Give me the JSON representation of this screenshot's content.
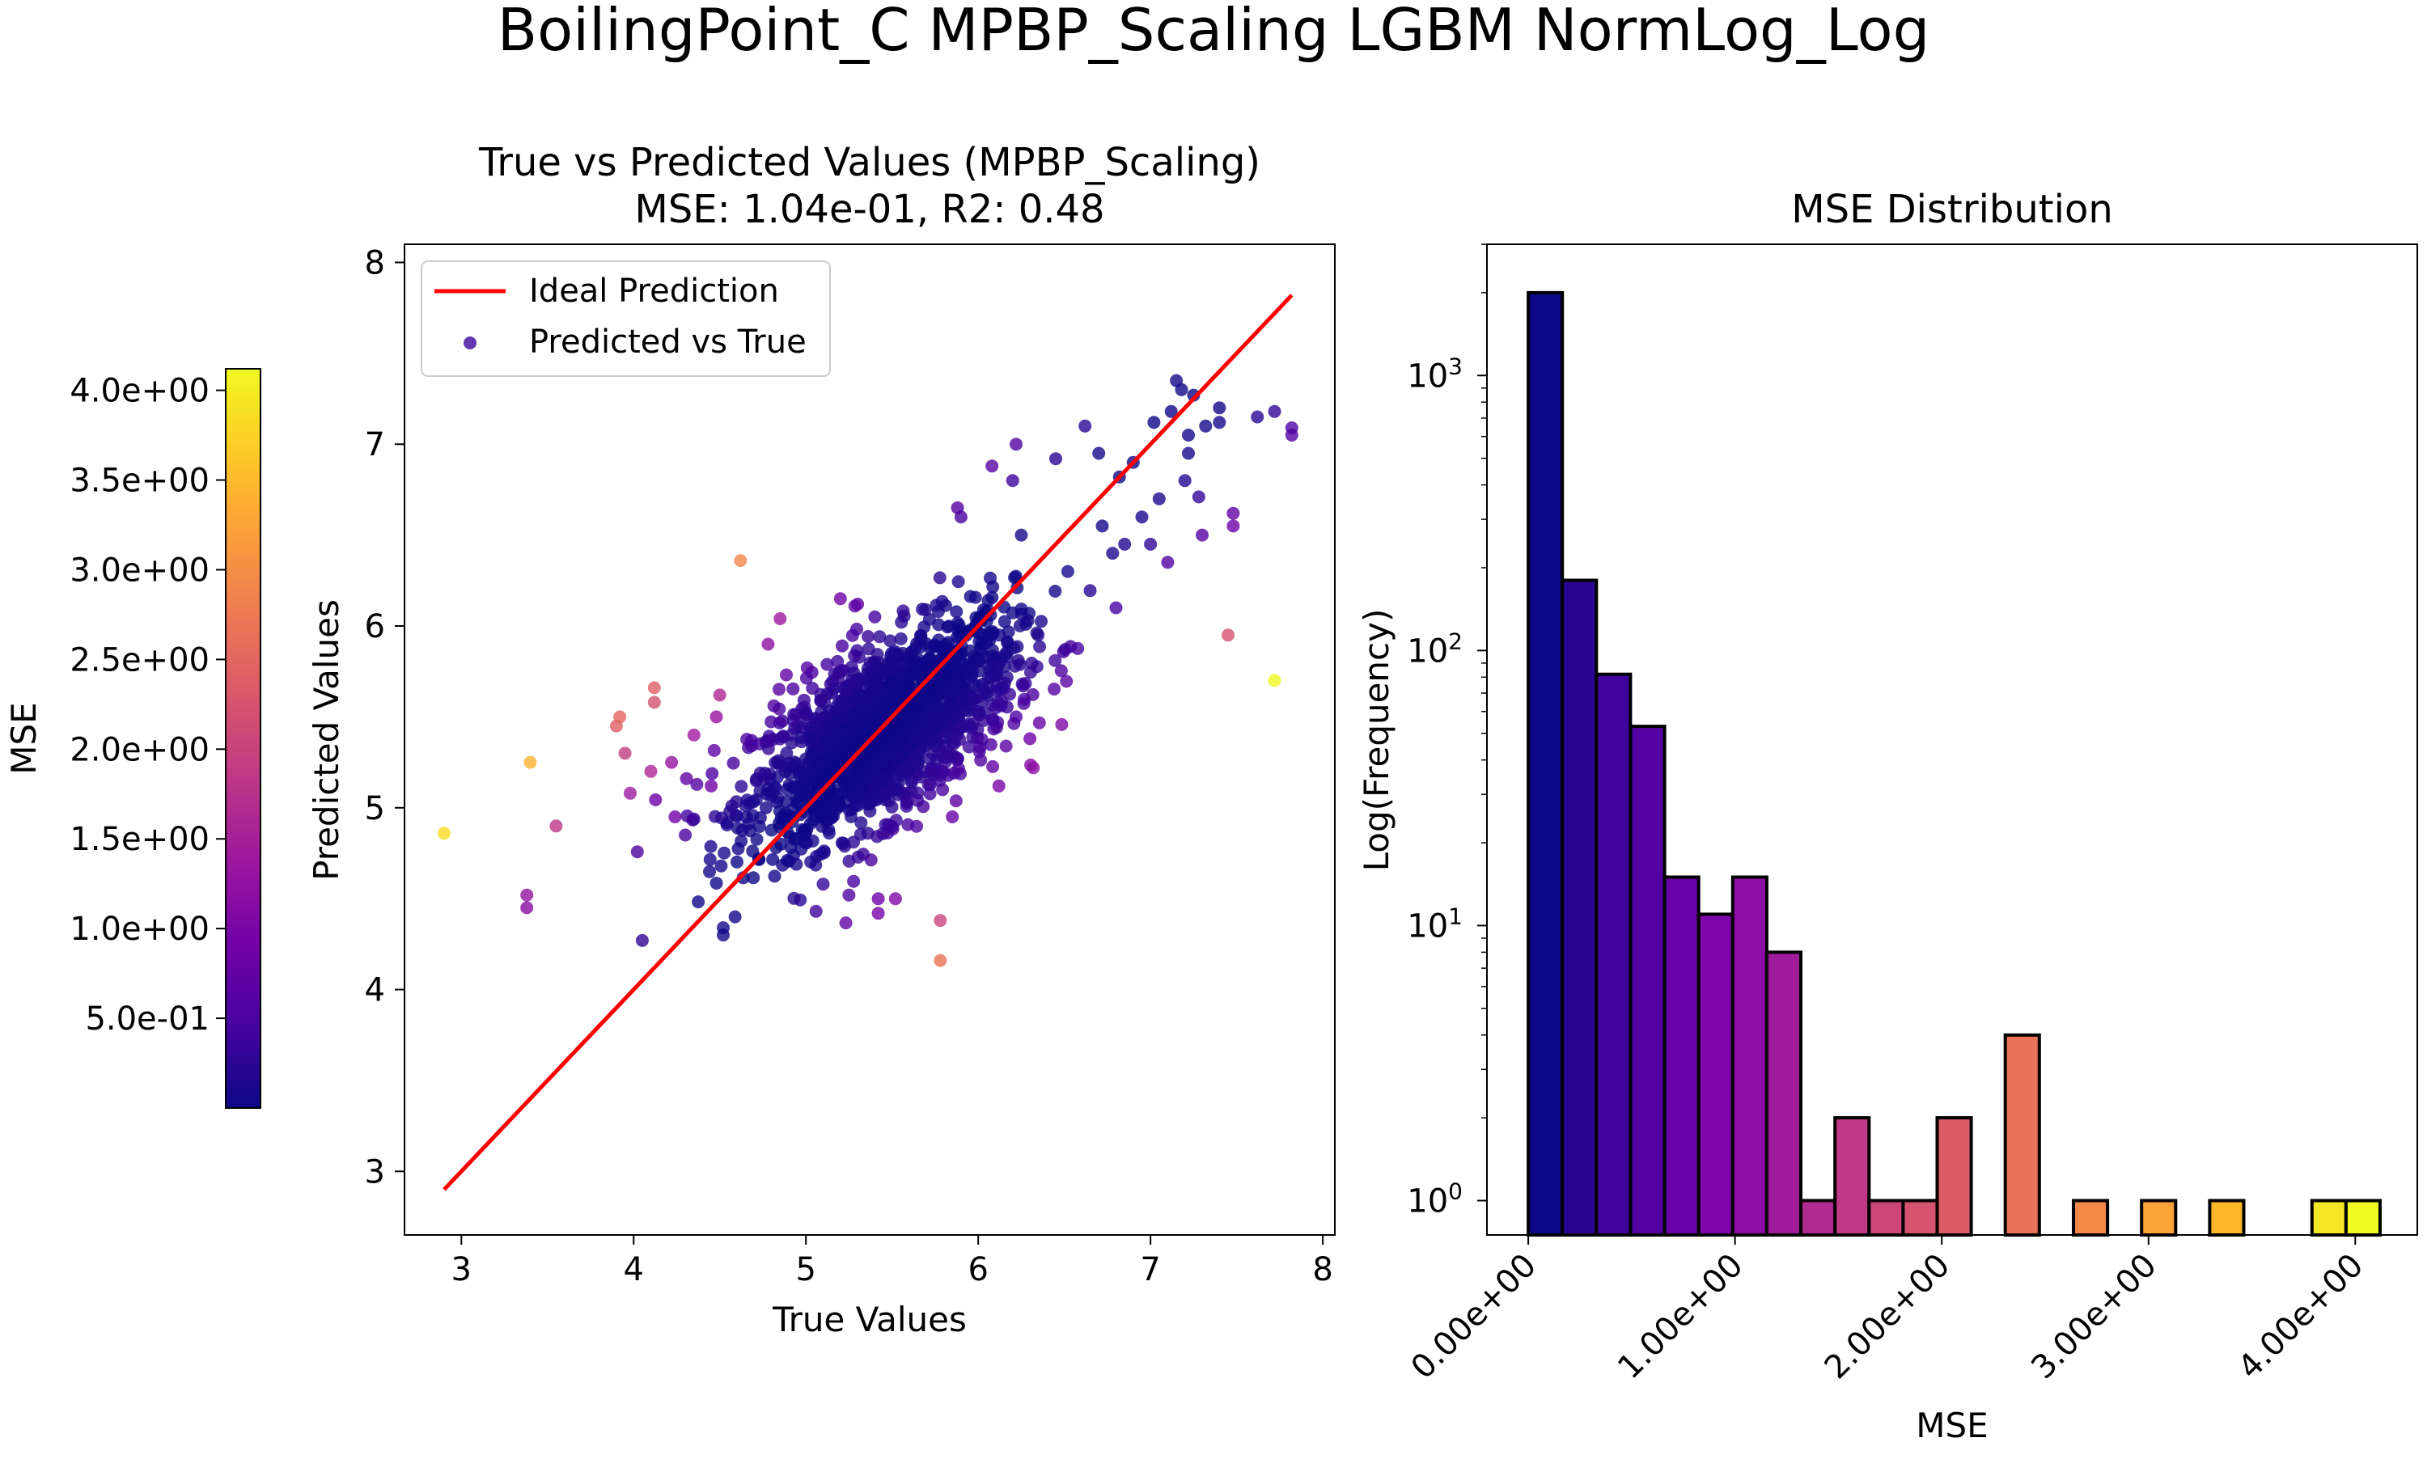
{
  "suptitle": "BoilingPoint_C MPBP_Scaling LGBM NormLog_Log",
  "colormap_stops": [
    "#0d0887",
    "#46039f",
    "#7201a8",
    "#9c179e",
    "#bd3786",
    "#d8576b",
    "#ed7953",
    "#fb9f3a",
    "#fdca26",
    "#f0f921"
  ],
  "chart_data": [
    {
      "type": "scatter",
      "title": "True vs Predicted Values (MPBP_Scaling)",
      "subtitle": "MSE: 1.04e-01, R2: 0.48",
      "xlabel": "True Values",
      "ylabel": "Predicted Values",
      "xlim": [
        2.67,
        8.07
      ],
      "ylim": [
        2.65,
        8.1
      ],
      "xticks": [
        "3",
        "4",
        "5",
        "6",
        "7",
        "8"
      ],
      "xtick_values": [
        3,
        4,
        5,
        6,
        7,
        8
      ],
      "yticks": [
        "3",
        "4",
        "5",
        "6",
        "7",
        "8"
      ],
      "ytick_values": [
        3,
        4,
        5,
        6,
        7,
        8
      ],
      "grid": false,
      "legend": {
        "placement": "upper-left",
        "entries": [
          {
            "label": "Ideal Prediction",
            "kind": "line",
            "color": "#ff0000"
          },
          {
            "label": "Predicted vs True",
            "kind": "marker",
            "color": "#3d049b"
          }
        ]
      },
      "ideal_line": {
        "x": [
          2.9,
          7.82
        ],
        "y": [
          2.9,
          7.82
        ],
        "color": "#ff0000"
      },
      "colorbar": {
        "label": "MSE",
        "range": [
          0.0,
          4.12
        ],
        "ticks": [
          "5.0e-01",
          "1.0e+00",
          "1.5e+00",
          "2.0e+00",
          "2.5e+00",
          "3.0e+00",
          "3.5e+00",
          "4.0e+00"
        ],
        "tick_values": [
          0.5,
          1.0,
          1.5,
          2.0,
          2.5,
          3.0,
          3.5,
          4.0
        ]
      },
      "cluster": {
        "x_mean": 5.45,
        "y_mean": 5.42,
        "x_sd": 0.38,
        "y_sd": 0.3,
        "rho": 0.62,
        "count": 1600
      },
      "points": [
        {
          "x": 2.9,
          "y": 4.86,
          "mse": 3.85
        },
        {
          "x": 3.38,
          "y": 4.52,
          "mse": 1.28
        },
        {
          "x": 3.38,
          "y": 4.45,
          "mse": 1.15
        },
        {
          "x": 3.4,
          "y": 5.25,
          "mse": 3.4
        },
        {
          "x": 3.55,
          "y": 4.9,
          "mse": 1.8
        },
        {
          "x": 3.9,
          "y": 5.45,
          "mse": 2.4
        },
        {
          "x": 3.92,
          "y": 5.5,
          "mse": 2.5
        },
        {
          "x": 3.95,
          "y": 5.3,
          "mse": 1.9
        },
        {
          "x": 3.98,
          "y": 5.08,
          "mse": 1.4
        },
        {
          "x": 4.05,
          "y": 4.27,
          "mse": 0.3
        },
        {
          "x": 4.1,
          "y": 5.2,
          "mse": 1.6
        },
        {
          "x": 4.12,
          "y": 5.58,
          "mse": 2.2
        },
        {
          "x": 4.12,
          "y": 5.66,
          "mse": 2.4
        },
        {
          "x": 4.22,
          "y": 5.25,
          "mse": 1.3
        },
        {
          "x": 4.24,
          "y": 4.95,
          "mse": 0.9
        },
        {
          "x": 4.3,
          "y": 4.85,
          "mse": 0.5
        },
        {
          "x": 4.35,
          "y": 5.4,
          "mse": 1.4
        },
        {
          "x": 4.45,
          "y": 5.12,
          "mse": 0.9
        },
        {
          "x": 4.48,
          "y": 5.5,
          "mse": 1.3
        },
        {
          "x": 4.5,
          "y": 5.62,
          "mse": 1.6
        },
        {
          "x": 4.52,
          "y": 4.3,
          "mse": 0.05
        },
        {
          "x": 4.52,
          "y": 4.34,
          "mse": 0.05
        },
        {
          "x": 4.62,
          "y": 6.36,
          "mse": 2.9
        },
        {
          "x": 4.78,
          "y": 5.9,
          "mse": 1.2
        },
        {
          "x": 4.85,
          "y": 6.04,
          "mse": 1.4
        },
        {
          "x": 5.1,
          "y": 4.58,
          "mse": 0.3
        },
        {
          "x": 5.2,
          "y": 6.15,
          "mse": 0.9
        },
        {
          "x": 5.25,
          "y": 4.52,
          "mse": 0.55
        },
        {
          "x": 5.3,
          "y": 6.12,
          "mse": 0.7
        },
        {
          "x": 5.4,
          "y": 6.05,
          "mse": 0.45
        },
        {
          "x": 5.42,
          "y": 4.5,
          "mse": 0.85
        },
        {
          "x": 5.42,
          "y": 4.42,
          "mse": 0.95
        },
        {
          "x": 5.52,
          "y": 4.5,
          "mse": 1.05
        },
        {
          "x": 5.78,
          "y": 4.16,
          "mse": 2.65
        },
        {
          "x": 5.78,
          "y": 4.38,
          "mse": 2.0
        },
        {
          "x": 5.85,
          "y": 4.95,
          "mse": 0.8
        },
        {
          "x": 5.88,
          "y": 6.65,
          "mse": 0.6
        },
        {
          "x": 5.9,
          "y": 6.6,
          "mse": 0.5
        },
        {
          "x": 6.08,
          "y": 6.88,
          "mse": 0.62
        },
        {
          "x": 6.12,
          "y": 5.12,
          "mse": 1.0
        },
        {
          "x": 6.2,
          "y": 6.8,
          "mse": 0.36
        },
        {
          "x": 6.22,
          "y": 7.0,
          "mse": 0.6
        },
        {
          "x": 6.22,
          "y": 5.5,
          "mse": 0.52
        },
        {
          "x": 6.25,
          "y": 6.5,
          "mse": 0.06
        },
        {
          "x": 6.3,
          "y": 5.38,
          "mse": 0.86
        },
        {
          "x": 6.32,
          "y": 5.22,
          "mse": 1.2
        },
        {
          "x": 6.45,
          "y": 6.92,
          "mse": 0.22
        },
        {
          "x": 6.52,
          "y": 6.3,
          "mse": 0.05
        },
        {
          "x": 6.62,
          "y": 7.1,
          "mse": 0.23
        },
        {
          "x": 6.7,
          "y": 6.95,
          "mse": 0.07
        },
        {
          "x": 6.72,
          "y": 6.55,
          "mse": 0.03
        },
        {
          "x": 6.78,
          "y": 6.4,
          "mse": 0.14
        },
        {
          "x": 6.8,
          "y": 6.1,
          "mse": 0.49
        },
        {
          "x": 6.82,
          "y": 6.82,
          "mse": 0.01
        },
        {
          "x": 6.85,
          "y": 6.45,
          "mse": 0.16
        },
        {
          "x": 6.9,
          "y": 6.9,
          "mse": 0.01
        },
        {
          "x": 6.95,
          "y": 6.6,
          "mse": 0.12
        },
        {
          "x": 7.0,
          "y": 6.45,
          "mse": 0.3
        },
        {
          "x": 7.02,
          "y": 7.12,
          "mse": 0.01
        },
        {
          "x": 7.05,
          "y": 6.7,
          "mse": 0.12
        },
        {
          "x": 7.1,
          "y": 6.35,
          "mse": 0.56
        },
        {
          "x": 7.12,
          "y": 7.18,
          "mse": 0.01
        },
        {
          "x": 7.15,
          "y": 7.35,
          "mse": 0.04
        },
        {
          "x": 7.18,
          "y": 7.3,
          "mse": 0.02
        },
        {
          "x": 7.2,
          "y": 6.8,
          "mse": 0.16
        },
        {
          "x": 7.22,
          "y": 7.05,
          "mse": 0.03
        },
        {
          "x": 7.22,
          "y": 6.95,
          "mse": 0.07
        },
        {
          "x": 7.25,
          "y": 7.27,
          "mse": 0.01
        },
        {
          "x": 7.28,
          "y": 6.71,
          "mse": 0.32
        },
        {
          "x": 7.3,
          "y": 6.5,
          "mse": 0.64
        },
        {
          "x": 7.32,
          "y": 7.1,
          "mse": 0.05
        },
        {
          "x": 7.4,
          "y": 7.2,
          "mse": 0.04
        },
        {
          "x": 7.4,
          "y": 7.12,
          "mse": 0.08
        },
        {
          "x": 7.45,
          "y": 5.95,
          "mse": 2.2
        },
        {
          "x": 7.48,
          "y": 6.62,
          "mse": 0.74
        },
        {
          "x": 7.48,
          "y": 6.55,
          "mse": 0.86
        },
        {
          "x": 7.62,
          "y": 7.15,
          "mse": 0.22
        },
        {
          "x": 7.72,
          "y": 5.7,
          "mse": 4.1
        },
        {
          "x": 7.72,
          "y": 7.18,
          "mse": 0.29
        },
        {
          "x": 7.82,
          "y": 7.05,
          "mse": 0.6
        },
        {
          "x": 7.82,
          "y": 7.09,
          "mse": 0.55
        }
      ]
    },
    {
      "type": "bar",
      "title": "MSE Distribution",
      "xlabel": "MSE",
      "ylabel": "Log(Frequency)",
      "yscale": "log",
      "xlim": [
        -0.2,
        4.3
      ],
      "ylim": [
        0.75,
        3000
      ],
      "xticks": [
        "0.00e+00",
        "1.00e+00",
        "2.00e+00",
        "3.00e+00",
        "4.00e+00"
      ],
      "xtick_values": [
        0,
        1,
        2,
        3,
        4
      ],
      "yticks": [
        {
          "base": "10",
          "exp": "0",
          "value": 1
        },
        {
          "base": "10",
          "exp": "1",
          "value": 10
        },
        {
          "base": "10",
          "exp": "2",
          "value": 100
        },
        {
          "base": "10",
          "exp": "3",
          "value": 1000
        }
      ],
      "bin_width": 0.1648,
      "bin_start": 0.0,
      "values": [
        2000,
        180,
        82,
        53,
        15,
        11,
        15,
        8,
        1,
        2,
        1,
        1,
        2,
        0,
        4,
        0,
        1,
        0,
        1,
        0,
        1,
        0,
        0,
        1,
        1
      ],
      "bin_colors": [
        "#0d0887",
        "#2a0593",
        "#41049d",
        "#5402a3",
        "#6a00a8",
        "#7e03a8",
        "#8f0da4",
        "#a01a9c",
        "#b12a90",
        "#bf3984",
        "#cc4778",
        "#d5536f",
        "#db5c68",
        "#e3685f",
        "#e97158",
        "#ef7e50",
        "#f48849",
        "#f89540",
        "#fba238",
        "#fca636",
        "#feb72a",
        "#fdc328",
        "#f9d724",
        "#f4e725",
        "#f0f921"
      ],
      "grid": false
    }
  ]
}
